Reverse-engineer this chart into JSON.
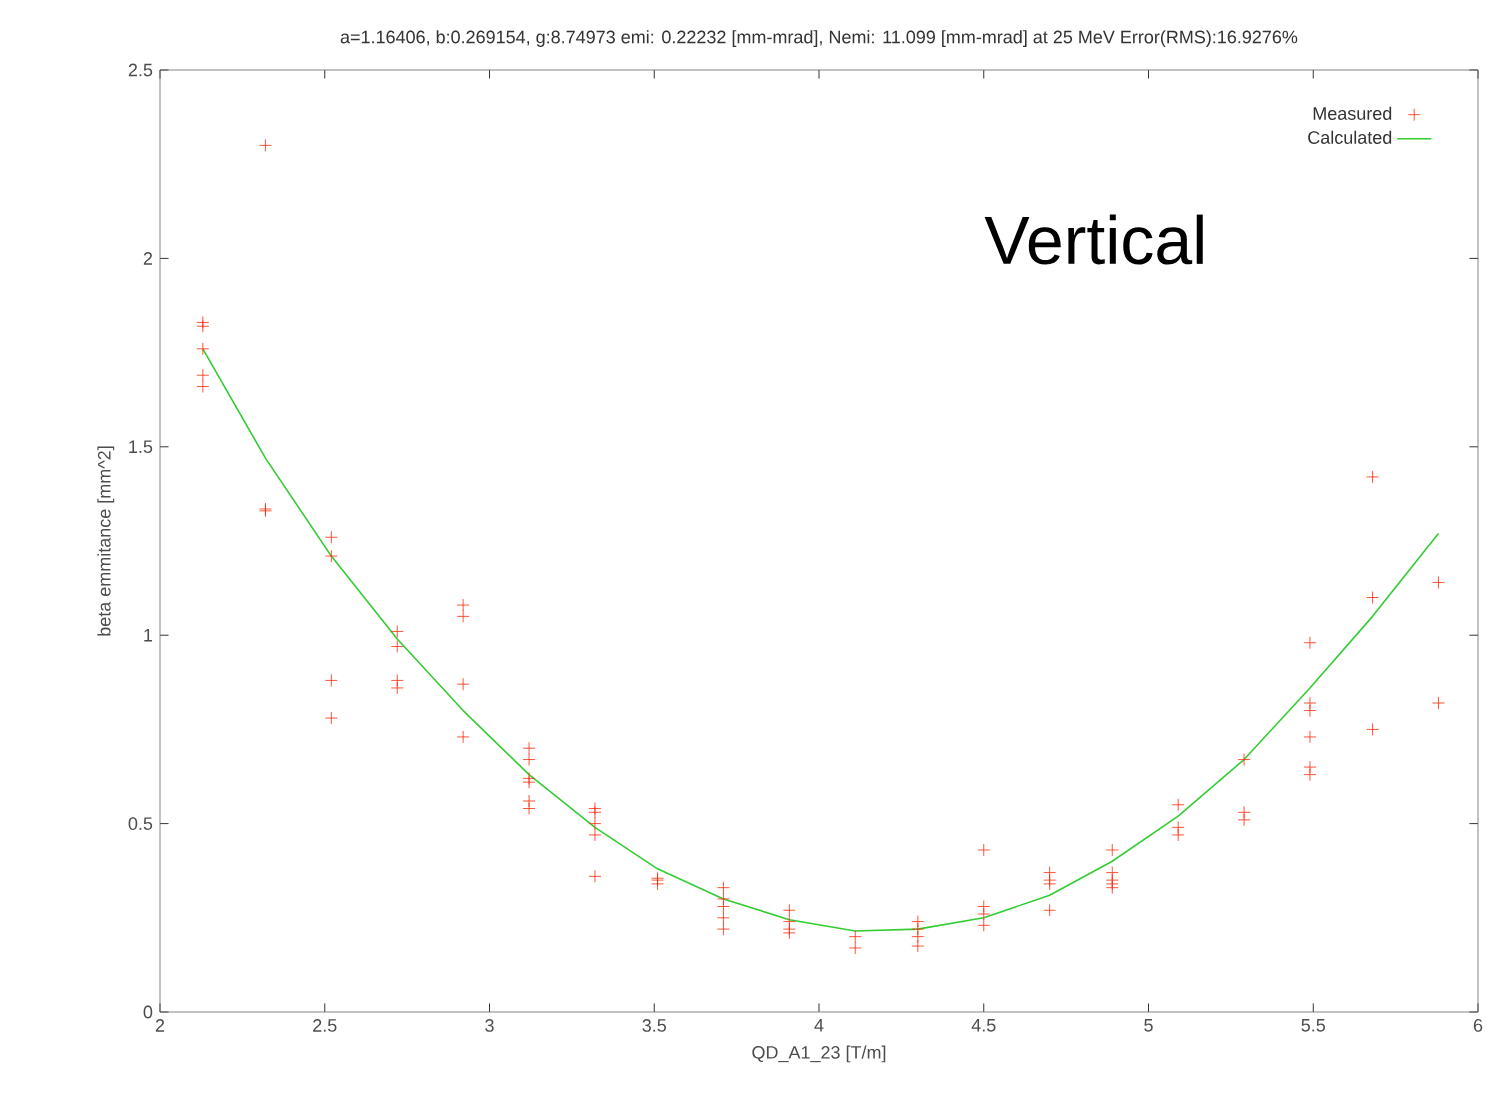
{
  "chart_data": {
    "type": "scatter",
    "title": "a=1.16406, b:0.269154, g:8.74973 emi: 0.22232 [mm-mrad],  Nemi: 11.099 [mm-mrad] at 25 MeV  Error(RMS):16.9276%",
    "xlabel": "QD_A1_23 [T/m]",
    "ylabel": "beta emmitance [mm^2]",
    "annotations": [
      "Vertical"
    ],
    "xlim": [
      2,
      6
    ],
    "ylim": [
      0,
      2.5
    ],
    "xticks": [
      2,
      2.5,
      3,
      3.5,
      4,
      4.5,
      5,
      5.5,
      6
    ],
    "yticks": [
      0,
      0.5,
      1,
      1.5,
      2,
      2.5
    ],
    "grid": false,
    "legend": "top right",
    "series": [
      {
        "name": "Measured",
        "marker": "cross",
        "color": "#ff2a0a",
        "x": [
          2.13,
          2.13,
          2.13,
          2.13,
          2.13,
          2.32,
          2.32,
          2.32,
          2.52,
          2.52,
          2.52,
          2.52,
          2.72,
          2.72,
          2.72,
          2.72,
          2.92,
          2.92,
          2.92,
          2.92,
          3.12,
          3.12,
          3.12,
          3.12,
          3.12,
          3.12,
          3.32,
          3.32,
          3.32,
          3.32,
          3.32,
          3.51,
          3.51,
          3.51,
          3.71,
          3.71,
          3.71,
          3.71,
          3.71,
          3.91,
          3.91,
          3.91,
          3.91,
          4.11,
          4.11,
          4.3,
          4.3,
          4.3,
          4.3,
          4.5,
          4.5,
          4.5,
          4.5,
          4.7,
          4.7,
          4.7,
          4.7,
          4.89,
          4.89,
          4.89,
          4.89,
          4.89,
          5.09,
          5.09,
          5.09,
          5.29,
          5.29,
          5.29,
          5.49,
          5.49,
          5.49,
          5.49,
          5.49,
          5.49,
          5.68,
          5.68,
          5.68,
          5.88,
          5.88
        ],
        "values": [
          1.83,
          1.82,
          1.76,
          1.69,
          1.66,
          2.3,
          1.335,
          1.33,
          1.26,
          1.21,
          0.88,
          0.78,
          1.01,
          0.97,
          0.88,
          0.86,
          1.08,
          1.05,
          0.87,
          0.73,
          0.7,
          0.67,
          0.62,
          0.61,
          0.56,
          0.54,
          0.54,
          0.53,
          0.5,
          0.47,
          0.36,
          0.355,
          0.35,
          0.34,
          0.33,
          0.3,
          0.28,
          0.25,
          0.22,
          0.27,
          0.24,
          0.22,
          0.21,
          0.2,
          0.17,
          0.24,
          0.22,
          0.2,
          0.175,
          0.43,
          0.28,
          0.26,
          0.23,
          0.37,
          0.35,
          0.34,
          0.27,
          0.43,
          0.37,
          0.35,
          0.34,
          0.33,
          0.55,
          0.49,
          0.47,
          0.67,
          0.53,
          0.51,
          0.98,
          0.82,
          0.8,
          0.73,
          0.65,
          0.63,
          1.42,
          1.1,
          0.75,
          1.14,
          0.82
        ]
      },
      {
        "name": "Calculated",
        "type": "line",
        "marker": "none",
        "color": "#33cc33",
        "x": [
          2.13,
          2.32,
          2.52,
          2.72,
          2.92,
          3.12,
          3.32,
          3.51,
          3.71,
          3.91,
          4.11,
          4.3,
          4.5,
          4.7,
          4.89,
          5.09,
          5.29,
          5.49,
          5.68,
          5.88
        ],
        "values": [
          1.76,
          1.47,
          1.21,
          0.99,
          0.8,
          0.63,
          0.49,
          0.38,
          0.3,
          0.245,
          0.215,
          0.22,
          0.25,
          0.31,
          0.4,
          0.52,
          0.67,
          0.86,
          1.05,
          1.27
        ]
      }
    ]
  }
}
